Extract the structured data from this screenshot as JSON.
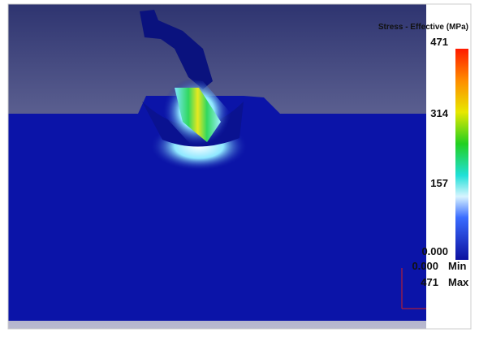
{
  "legend": {
    "title": "Stress - Effective (MPa)",
    "ticks": [
      "471",
      "314",
      "157",
      "0.000"
    ],
    "min_value": "0.000",
    "min_label": "Min",
    "max_value": "471",
    "max_label": "Max"
  }
}
